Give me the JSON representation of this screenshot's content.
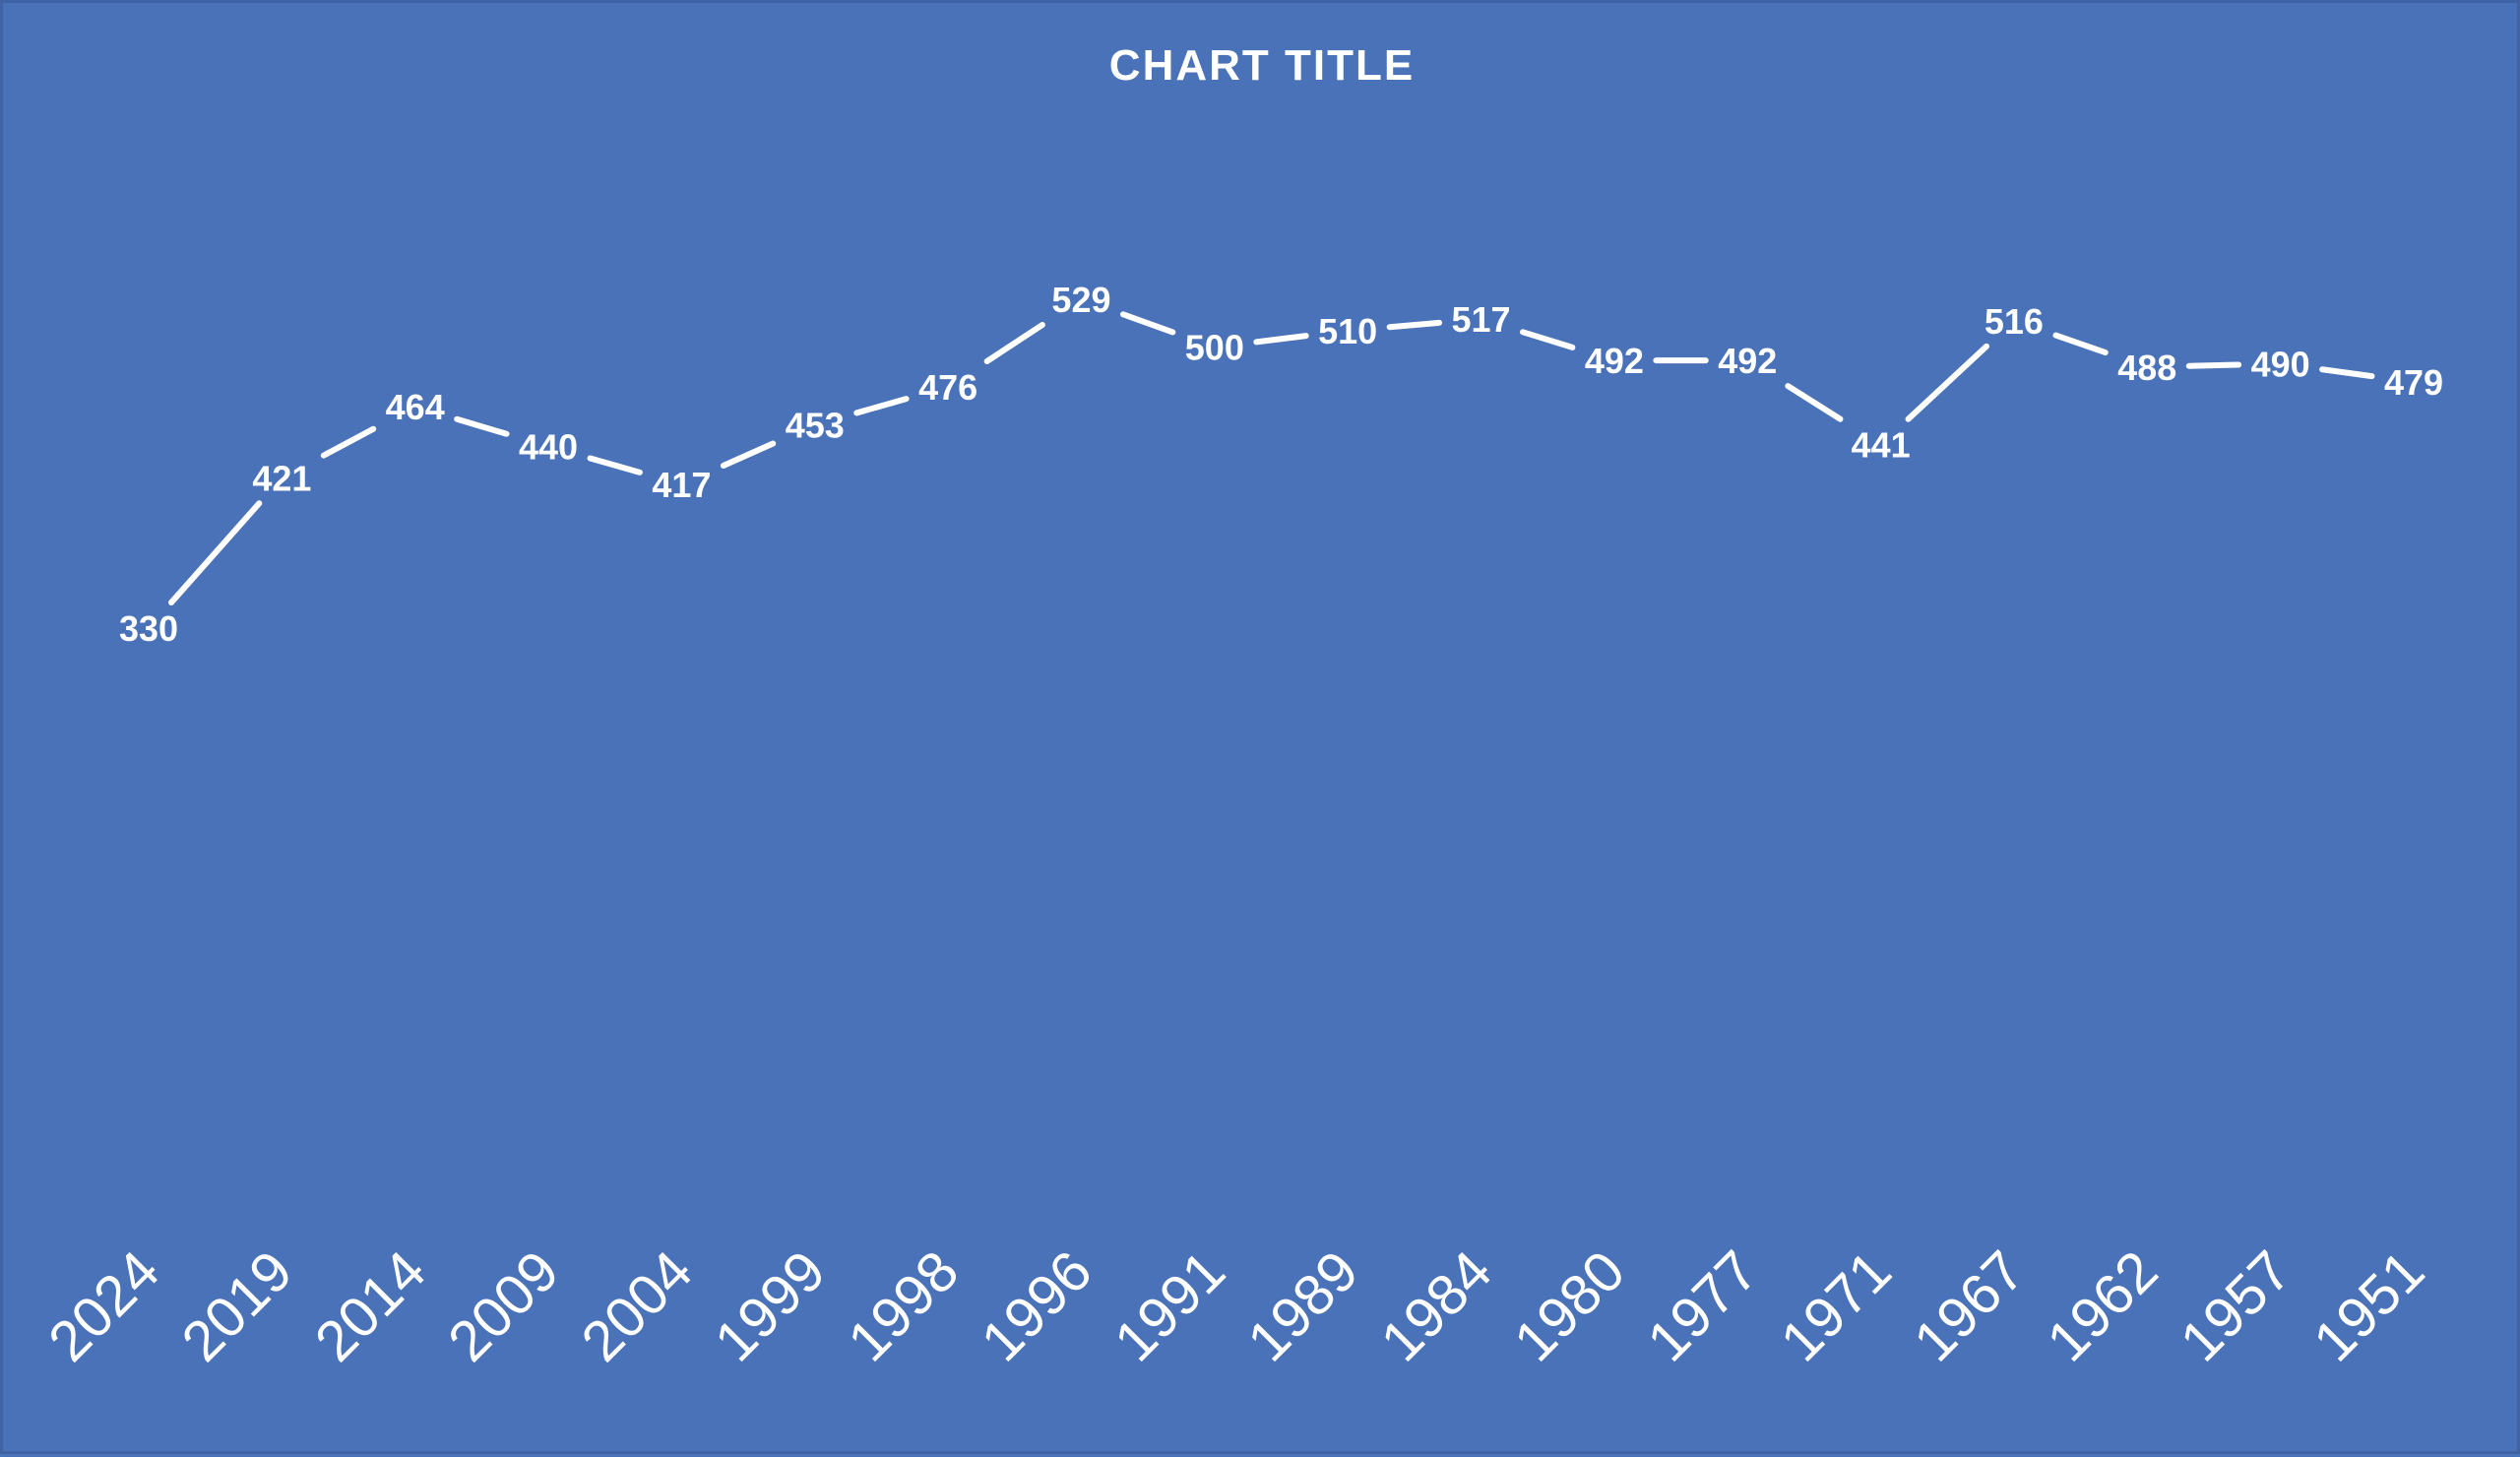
{
  "colors": {
    "background": "#4a72b8",
    "line": "#ffffff",
    "text": "#ffffff"
  },
  "chart_data": {
    "type": "line",
    "title": "CHART TITLE",
    "xlabel": "",
    "ylabel": "",
    "categories": [
      "2024",
      "2019",
      "2014",
      "2009",
      "2004",
      "1999",
      "1998",
      "1996",
      "1991",
      "1989",
      "1984",
      "1980",
      "1977",
      "1971",
      "1967",
      "1962",
      "1957",
      "1951"
    ],
    "series": [
      {
        "values": [
          330,
          421,
          464,
          440,
          417,
          453,
          476,
          529,
          500,
          510,
          517,
          492,
          492,
          441,
          516,
          488,
          490,
          479
        ]
      }
    ],
    "data_labels": true,
    "drop_lines": true,
    "grid": false,
    "legend": "none",
    "x_tick_rotation": "diagonal"
  }
}
